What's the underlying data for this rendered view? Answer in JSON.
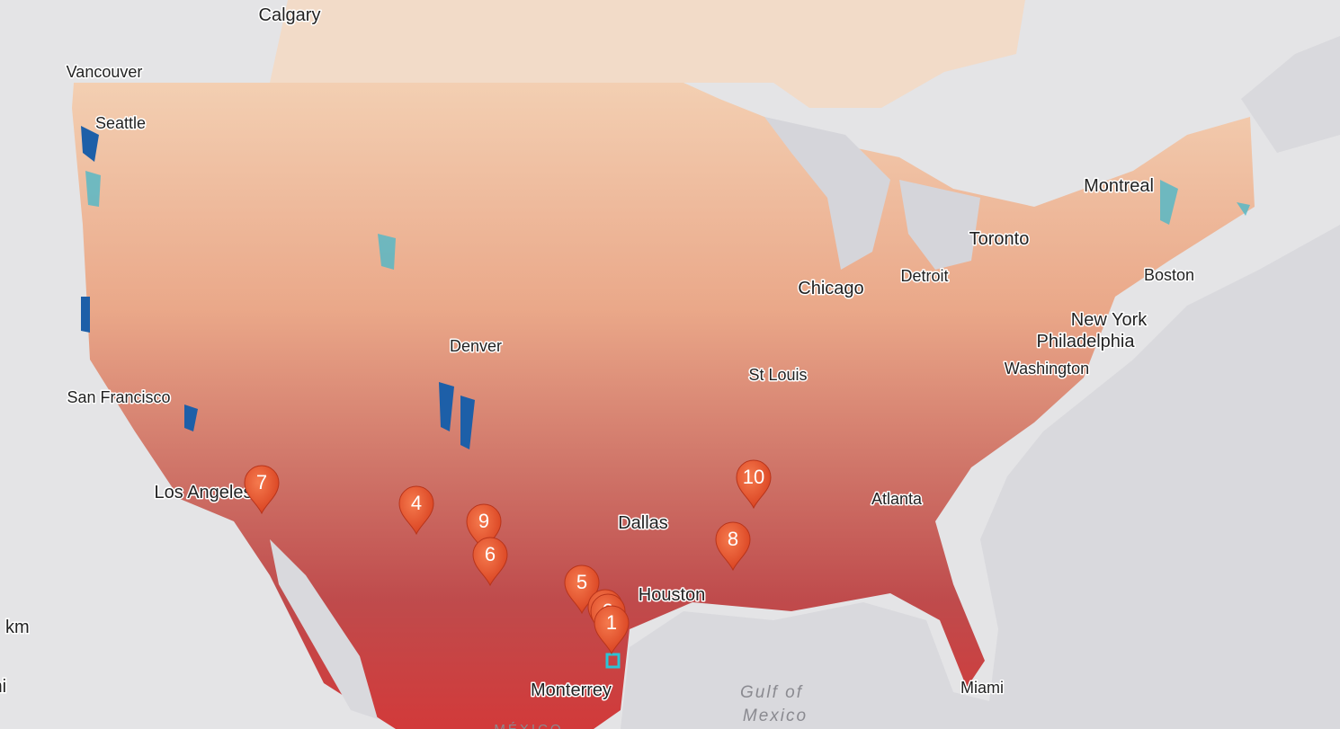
{
  "cities": [
    "Calgary",
    "Vancouver",
    "Seattle",
    "Montreal",
    "Toronto",
    "Detroit",
    "Boston",
    "Chicago",
    "New York",
    "Philadelphia",
    "Washington",
    "Denver",
    "St Louis",
    "San Francisco",
    "Los Angeles",
    "Atlanta",
    "Dallas",
    "Houston",
    "Miami",
    "Monterrey"
  ],
  "water_label": [
    "Gulf of",
    "Mexico"
  ],
  "country_label": "MÉXICO",
  "scale_units": [
    "km",
    "mi"
  ],
  "markers": [
    "7",
    "4",
    "9",
    "6",
    "5",
    "3",
    "2",
    "1",
    "8",
    "10"
  ]
}
